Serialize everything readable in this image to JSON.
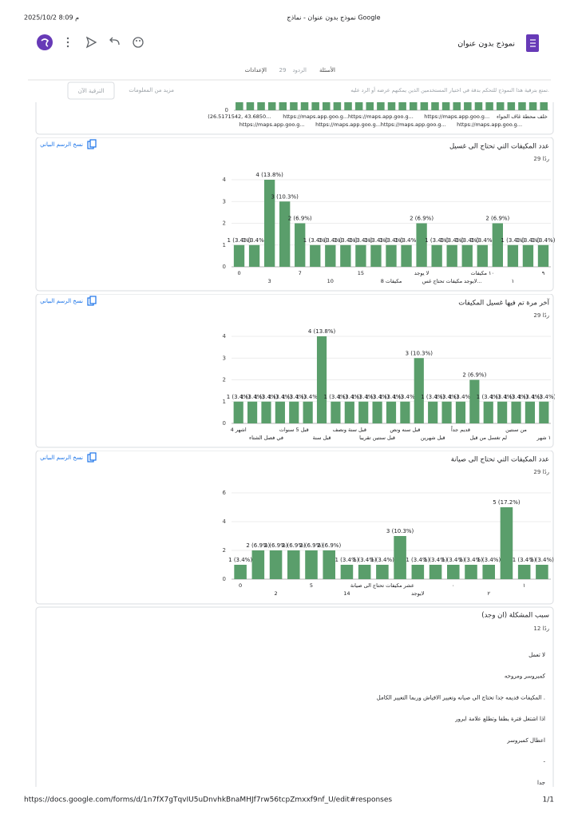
{
  "browser": {
    "datetime": "2025/10/2 8:09 م",
    "page_title": "نموذج بدون عنوان - نماذج Google",
    "url": "https://docs.google.com/forms/d/1n7fX7gTqvIU5uDnvhkBnaMHJf7rw56tcpZmxxf9nf_U/edit#responses",
    "page_number": "1/1"
  },
  "header": {
    "form_title": "نموذج بدون عنوان",
    "tabs": {
      "questions": "الأسئلة",
      "responses": "الردود",
      "responses_count": 29,
      "settings": "الإعدادات"
    }
  },
  "banner": {
    "text": "تمتع بترقية هذا النموذج للتحكم بدقة في اختيار المستخدمين الذين يمكنهم عرضه أو الرد عليه.",
    "more_info": "مزيد من المعلومات",
    "upgrade": "الترقية الآن"
  },
  "chart_data": [
    {
      "type": "bar",
      "color": "#5a9e6b",
      "ylim": [
        0,
        1
      ],
      "yticks": [
        0
      ],
      "categories": [
        "(26.5171542, 43.6850...",
        null,
        null,
        "https://maps.app.goo.g...",
        null,
        null,
        null,
        "https://maps.app.goo.g...",
        null,
        null,
        "https://maps.app.goo.g...",
        null,
        null,
        "https://maps.app.goo.g...",
        null,
        null,
        "https://maps.app.goo.g...",
        null,
        null,
        null,
        "https://maps.app.goo.g...",
        null,
        null,
        "https://maps.app.goo.g...",
        null,
        null,
        "خلف محطة غاف الجواء",
        null,
        null
      ],
      "values": [
        1,
        1,
        1,
        1,
        1,
        1,
        1,
        1,
        1,
        1,
        1,
        1,
        1,
        1,
        1,
        1,
        1,
        1,
        1,
        1,
        1,
        1,
        1,
        1,
        1,
        1,
        1,
        1,
        1
      ]
    },
    {
      "type": "bar",
      "title": "عدد المكيفات التي تحتاج الى غسيل",
      "subtitle": "29 ردًا",
      "copy_label": "نسخ الرسم البياني",
      "color": "#5a9e6b",
      "ylim": [
        0,
        4
      ],
      "yticks": [
        0,
        1,
        2,
        3,
        4
      ],
      "categories": [
        "0",
        null,
        "3",
        null,
        "7",
        null,
        "10",
        null,
        "15",
        null,
        "8 مكيفات",
        null,
        "لا يوجد",
        null,
        "لايوجد مكيفات تحتاج غس...",
        null,
        "١٠ مكيفات",
        null,
        "١",
        null,
        "٩"
      ],
      "values": [
        1,
        1,
        4,
        3,
        2,
        1,
        1,
        1,
        1,
        1,
        1,
        1,
        2,
        1,
        1,
        1,
        1,
        2,
        1,
        1,
        1
      ],
      "value_labels": [
        "1 (3.4%)",
        "1 (3.4%)",
        "4 (13.8%)",
        "3 (10.3%)",
        "2 (6.9%)",
        "1 (3.4%)",
        "1 (3.4%)",
        "1 (3.4%)",
        "1 (3.4%)",
        "1 (3.4%)",
        "1 (3.4%)",
        "1 (3.4%)",
        "2 (6.9%)",
        "1 (3.4%)",
        "1 (3.4%)",
        "1 (3.4%)",
        "1 (3.4%)",
        "2 (6.9%)",
        "1 (3.4%)",
        "1 (3.4%)",
        "1 (3.4%)"
      ]
    },
    {
      "type": "bar",
      "title": "آخر مرة تم فيها غسيل المكيفات",
      "subtitle": "29 ردًا",
      "copy_label": "نسخ الرسم البياني",
      "color": "#5a9e6b",
      "ylim": [
        0,
        4
      ],
      "yticks": [
        0,
        1,
        2,
        3,
        4
      ],
      "categories": [
        "4 اشهر",
        null,
        "في فصل الشتاء",
        null,
        "قبل 5 سنوات",
        null,
        "قبل سنة",
        null,
        "قبل سنة ونصف",
        null,
        "قبل سنتين تقريبا",
        null,
        "قبل سنه ونص",
        null,
        "قبل شهرين",
        null,
        "قديم جداً",
        null,
        "لم تغسل من قبل",
        null,
        "من سنتين",
        null,
        "١ شهر"
      ],
      "values": [
        1,
        1,
        1,
        1,
        1,
        1,
        4,
        1,
        1,
        1,
        1,
        1,
        1,
        3,
        1,
        1,
        1,
        2,
        1,
        1,
        1,
        1,
        1
      ],
      "value_labels": [
        "1 (3.4%)",
        "1 (3.4%)",
        "1 (3.4%)",
        "1 (3.4%)",
        "1 (3.4%)",
        "1 (3.4%)",
        "4 (13.8%)",
        "1 (3.4%)",
        "1 (3.4%)",
        "1 (3.4%)",
        "1 (3.4%)",
        "1 (3.4%)",
        "1 (3.4%)",
        "3 (10.3%)",
        "1 (3.4%)",
        "1 (3.4%)",
        "1 (3.4%)",
        "2 (6.9%)",
        "1 (3.4%)",
        "1 (3.4%)",
        "1 (3.4%)",
        "1 (3.4%)",
        "1 (3.4%)"
      ]
    },
    {
      "type": "bar",
      "title": "عدد المكيفات التي تحتاج الى صيانة",
      "subtitle": "29 ردًا",
      "copy_label": "نسخ الرسم البياني",
      "color": "#5a9e6b",
      "ylim": [
        0,
        6
      ],
      "yticks": [
        0,
        2,
        4,
        6
      ],
      "categories": [
        "0",
        null,
        "2",
        null,
        "5",
        null,
        "14",
        null,
        "عشر مكيفات تحتاج الى صيانة",
        null,
        "لايوجد",
        null,
        "٠",
        null,
        "٢",
        null,
        "١",
        null
      ],
      "values": [
        1,
        2,
        2,
        2,
        2,
        2,
        1,
        1,
        1,
        3,
        1,
        1,
        1,
        1,
        1,
        5,
        1,
        1
      ],
      "value_labels": [
        "1 (3.4%)",
        "2 (6.9%)",
        "2 (6.9%)",
        "2 (6.9%)",
        "2 (6.9%)",
        "2 (6.9%)",
        "1 (3.4%)",
        "1 (3.4%)",
        "1 (3.4%)",
        "3 (10.3%)",
        "1 (3.4%)",
        "1 (3.4%)",
        "1 (3.4%)",
        "1 (3.4%)",
        "1 (3.4%)",
        "5 (17.2%)",
        "1 (3.4%)",
        "1 (3.4%)"
      ]
    }
  ],
  "text_question": {
    "title": "سبب المشكلة (ان وجد)",
    "subtitle": "12 ردًا",
    "responses": [
      "لا تعمل",
      "كمبروسر ومروحه",
      "المكيفات قديمه جدا تحتاج الى صيانه وتغيير الافياش وربما التغيير الكامل .",
      "اذا اشتغل فترة يطفا وتطلع علامة ايرور",
      "اعطال كمبروسر",
      "-",
      "جدا"
    ]
  }
}
